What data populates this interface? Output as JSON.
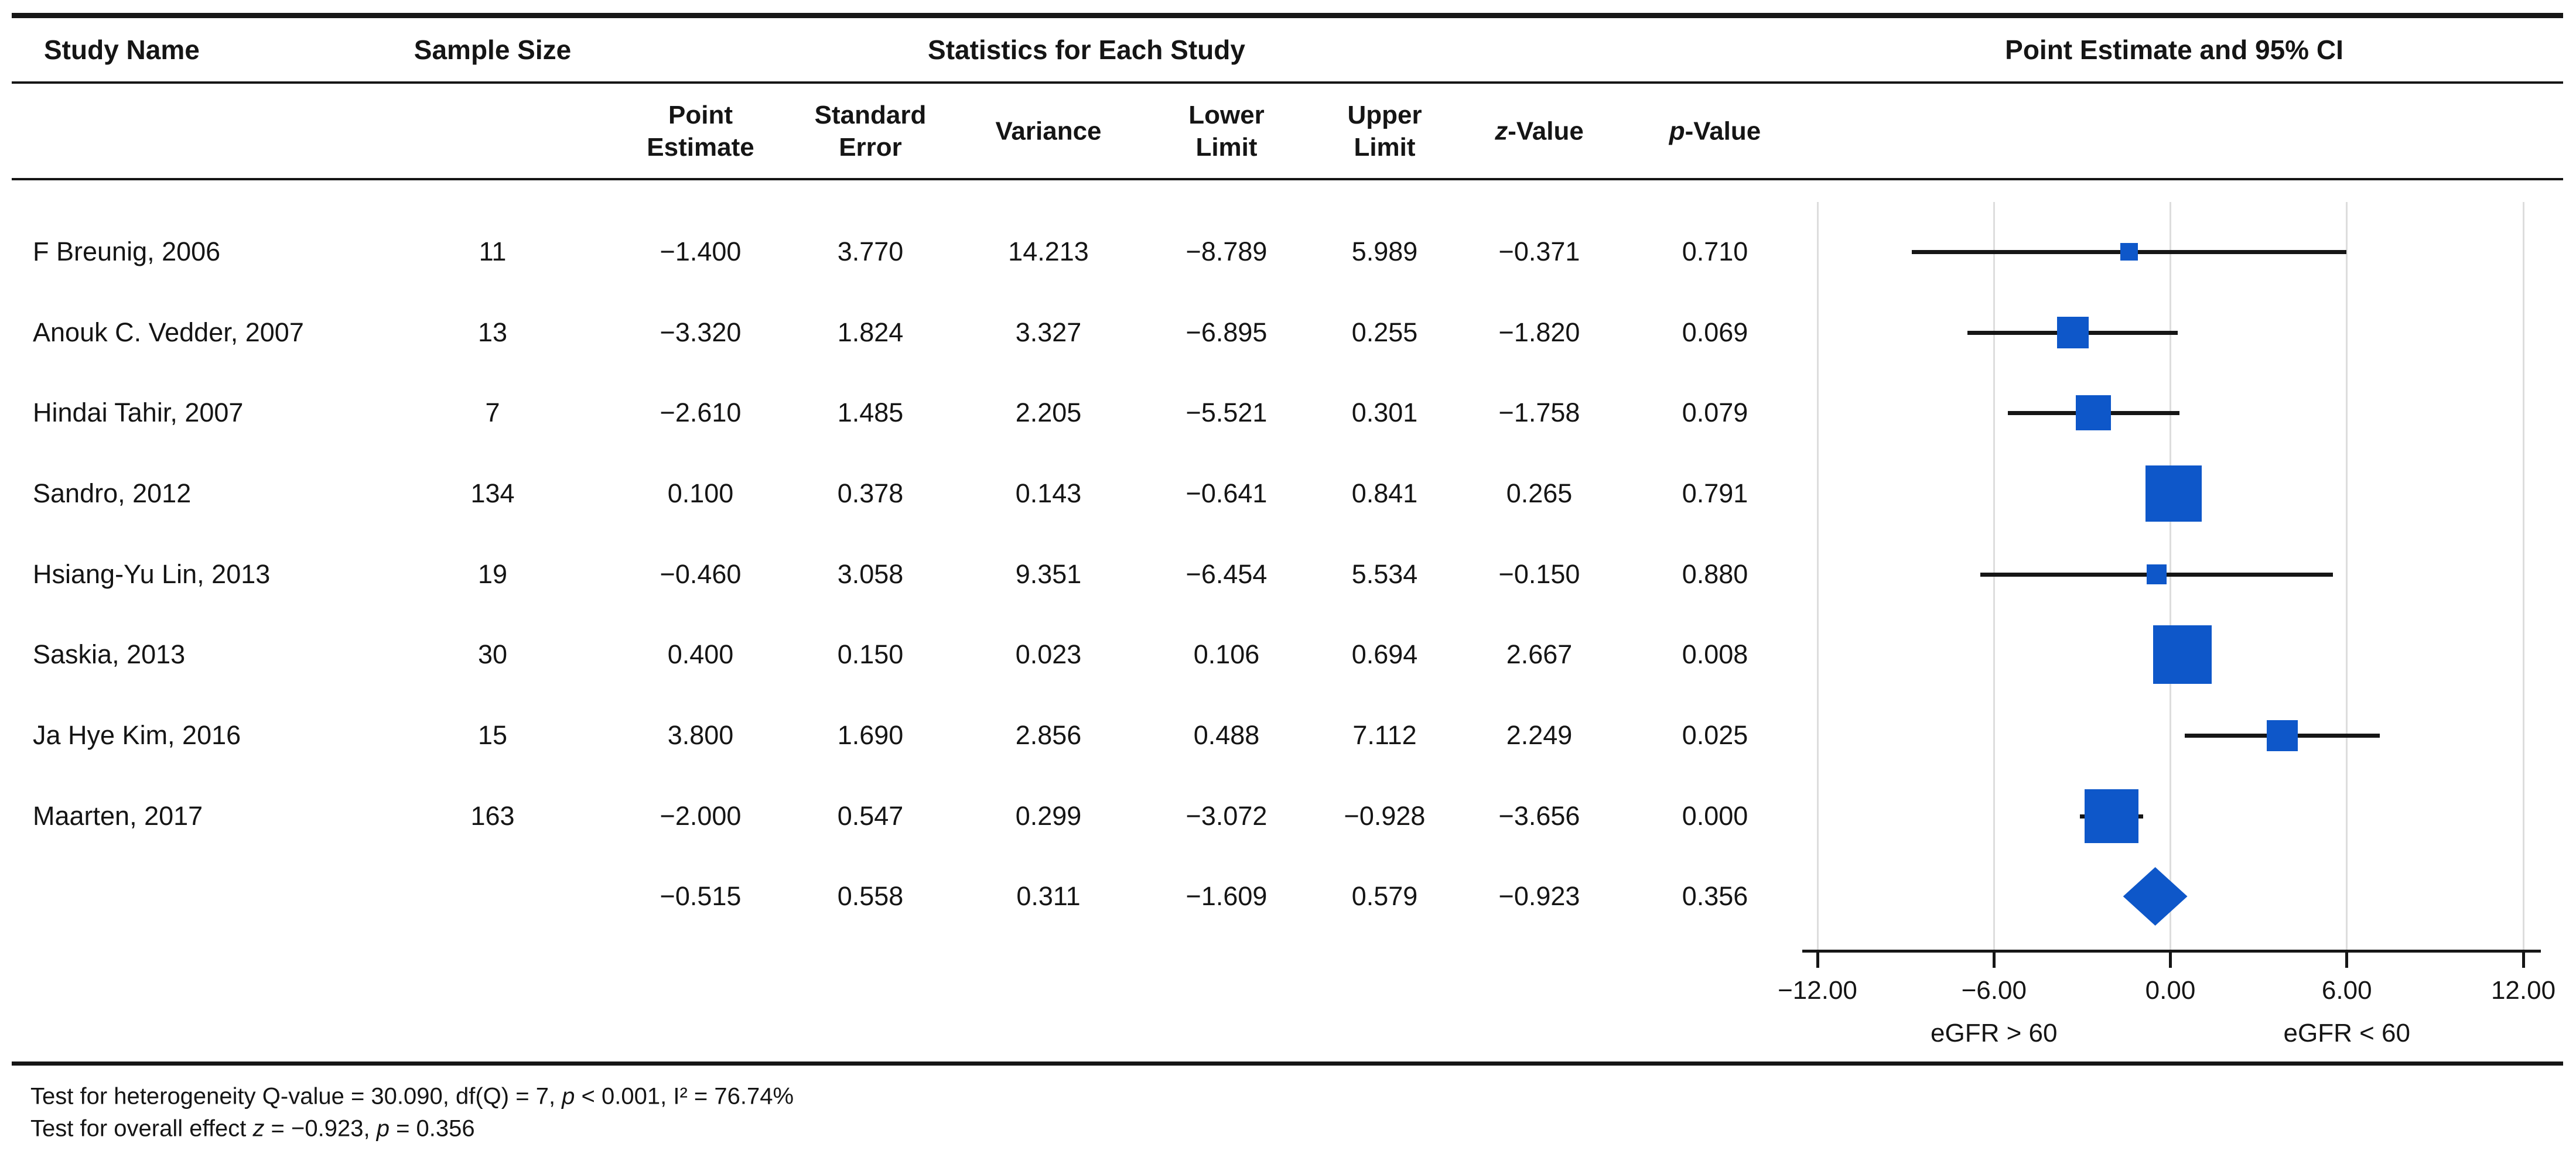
{
  "table": {
    "header": {
      "study": "Study Name",
      "sample": "Sample Size",
      "stats": "Statistics for Each Study",
      "plot": "Point Estimate and 95% CI"
    },
    "subheader": {
      "point_estimate": "Point\nEstimate",
      "standard_error": "Standard\nError",
      "variance": "Variance",
      "lower_limit": "Lower\nLimit",
      "upper_limit": "Upper\nLimit",
      "z_italic": "z",
      "z_rest": "-Value",
      "p_italic": "p",
      "p_rest": "-Value"
    },
    "rows": [
      {
        "study": "F Breunig, 2006",
        "n": "11",
        "est": "−1.400",
        "se": "3.770",
        "variance": "14.213",
        "ll": "−8.789",
        "ul": "5.989",
        "z": "−0.371",
        "p": "0.710"
      },
      {
        "study": "Anouk C. Vedder, 2007",
        "n": "13",
        "est": "−3.320",
        "se": "1.824",
        "variance": "3.327",
        "ll": "−6.895",
        "ul": "0.255",
        "z": "−1.820",
        "p": "0.069"
      },
      {
        "study": "Hindai Tahir, 2007",
        "n": "7",
        "est": "−2.610",
        "se": "1.485",
        "variance": "2.205",
        "ll": "−5.521",
        "ul": "0.301",
        "z": "−1.758",
        "p": "0.079"
      },
      {
        "study": "Sandro, 2012",
        "n": "134",
        "est": "0.100",
        "se": "0.378",
        "variance": "0.143",
        "ll": "−0.641",
        "ul": "0.841",
        "z": "0.265",
        "p": "0.791"
      },
      {
        "study": "Hsiang-Yu Lin, 2013",
        "n": "19",
        "est": "−0.460",
        "se": "3.058",
        "variance": "9.351",
        "ll": "−6.454",
        "ul": "5.534",
        "z": "−0.150",
        "p": "0.880"
      },
      {
        "study": "Saskia, 2013",
        "n": "30",
        "est": "0.400",
        "se": "0.150",
        "variance": "0.023",
        "ll": "0.106",
        "ul": "0.694",
        "z": "2.667",
        "p": "0.008"
      },
      {
        "study": "Ja Hye Kim, 2016",
        "n": "15",
        "est": "3.800",
        "se": "1.690",
        "variance": "2.856",
        "ll": "0.488",
        "ul": "7.112",
        "z": "2.249",
        "p": "0.025"
      },
      {
        "study": "Maarten, 2017",
        "n": "163",
        "est": "−2.000",
        "se": "0.547",
        "variance": "0.299",
        "ll": "−3.072",
        "ul": "−0.928",
        "z": "−3.656",
        "p": "0.000"
      },
      {
        "study": "",
        "n": "",
        "est": "−0.515",
        "se": "0.558",
        "variance": "0.311",
        "ll": "−1.609",
        "ul": "0.579",
        "z": "−0.923",
        "p": "0.356"
      }
    ]
  },
  "footer": {
    "l1s1": "Test for heterogeneity Q-value = 30.090, df(Q) = 7, ",
    "l1p": "p",
    "l1s3": " < 0.001, I² = 76.74%",
    "l2s1": "Test for overall effect ",
    "l2z": "z",
    "l2s3": " = −0.923, ",
    "l2p": "p",
    "l2s5": " = 0.356"
  },
  "colors": {
    "marker_blue": "#0E57C9",
    "line_black": "#161616",
    "gridline_gray": "#DDDDDD"
  },
  "chart_data": {
    "type": "forest",
    "title": "Point Estimate and 95% CI",
    "axis": {
      "min": -12,
      "max": 12,
      "ticks": [
        -12,
        -6,
        0,
        6,
        12
      ],
      "tick_labels": [
        "−12.00",
        "−6.00",
        "0.00",
        "6.00",
        "12.00"
      ],
      "direction_labels": [
        {
          "value": -6,
          "label": "eGFR > 60"
        },
        {
          "value": 6,
          "label": "eGFR < 60"
        }
      ],
      "grid": true
    },
    "studies": [
      {
        "name": "F Breunig, 2006",
        "sample_size": 11,
        "point_estimate": -1.4,
        "standard_error": 3.77,
        "variance": 14.213,
        "lower_limit": -8.789,
        "upper_limit": 5.989,
        "z_value": -0.371,
        "p_value": 0.71,
        "marker_px": 30
      },
      {
        "name": "Anouk C. Vedder, 2007",
        "sample_size": 13,
        "point_estimate": -3.32,
        "standard_error": 1.824,
        "variance": 3.327,
        "lower_limit": -6.895,
        "upper_limit": 0.255,
        "z_value": -1.82,
        "p_value": 0.069,
        "marker_px": 54
      },
      {
        "name": "Hindai Tahir, 2007",
        "sample_size": 7,
        "point_estimate": -2.61,
        "standard_error": 1.485,
        "variance": 2.205,
        "lower_limit": -5.521,
        "upper_limit": 0.301,
        "z_value": -1.758,
        "p_value": 0.079,
        "marker_px": 60
      },
      {
        "name": "Sandro, 2012",
        "sample_size": 134,
        "point_estimate": 0.1,
        "standard_error": 0.378,
        "variance": 0.143,
        "lower_limit": -0.641,
        "upper_limit": 0.841,
        "z_value": 0.265,
        "p_value": 0.791,
        "marker_px": 96
      },
      {
        "name": "Hsiang-Yu Lin, 2013",
        "sample_size": 19,
        "point_estimate": -0.46,
        "standard_error": 3.058,
        "variance": 9.351,
        "lower_limit": -6.454,
        "upper_limit": 5.534,
        "z_value": -0.15,
        "p_value": 0.88,
        "marker_px": 34
      },
      {
        "name": "Saskia, 2013",
        "sample_size": 30,
        "point_estimate": 0.4,
        "standard_error": 0.15,
        "variance": 0.023,
        "lower_limit": 0.106,
        "upper_limit": 0.694,
        "z_value": 2.667,
        "p_value": 0.008,
        "marker_px": 100
      },
      {
        "name": "Ja Hye Kim, 2016",
        "sample_size": 15,
        "point_estimate": 3.8,
        "standard_error": 1.69,
        "variance": 2.856,
        "lower_limit": 0.488,
        "upper_limit": 7.112,
        "z_value": 2.249,
        "p_value": 0.025,
        "marker_px": 53
      },
      {
        "name": "Maarten, 2017",
        "sample_size": 163,
        "point_estimate": -2.0,
        "standard_error": 0.547,
        "variance": 0.299,
        "lower_limit": -3.072,
        "upper_limit": -0.928,
        "z_value": -3.656,
        "p_value": 0.0,
        "marker_px": 92
      }
    ],
    "summary": {
      "point_estimate": -0.515,
      "standard_error": 0.558,
      "variance": 0.311,
      "lower_limit": -1.609,
      "upper_limit": 0.579,
      "z_value": -0.923,
      "p_value": 0.356
    },
    "heterogeneity": {
      "q_value": 30.09,
      "df_q": 7,
      "p": "< 0.001",
      "i_squared_pct": 76.74
    },
    "overall_effect": {
      "z": -0.923,
      "p": 0.356
    }
  }
}
